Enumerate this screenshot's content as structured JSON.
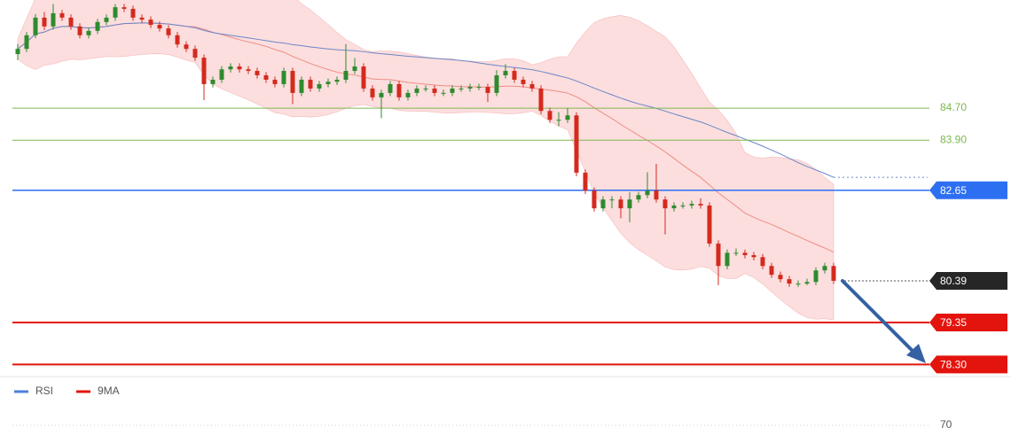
{
  "chart_data": {
    "type": "candlestick",
    "ylim": [
      78.0,
      87.4
    ],
    "up_color": "#2e8b2e",
    "down_color": "#d42a1e",
    "open": [
      86.05,
      86.18,
      86.52,
      86.96,
      86.74,
      87.07,
      86.96,
      86.74,
      86.52,
      86.63,
      86.85,
      86.96,
      87.22,
      87.18,
      86.96,
      86.91,
      86.78,
      86.69,
      86.52,
      86.29,
      86.18,
      85.96,
      85.3,
      85.41,
      85.67,
      85.74,
      85.67,
      85.63,
      85.52,
      85.41,
      85.3,
      85.63,
      85.08,
      85.41,
      85.19,
      85.3,
      85.36,
      85.41,
      85.63,
      85.74,
      85.19,
      84.97,
      85.08,
      85.3,
      84.97,
      85.08,
      85.19,
      85.19,
      85.08,
      85.08,
      85.19,
      85.19,
      85.23,
      85.23,
      85.08,
      85.52,
      85.63,
      85.41,
      85.3,
      85.19,
      84.63,
      84.41,
      84.41,
      84.52,
      83.09,
      82.64,
      82.2,
      82.42,
      82.42,
      82.2,
      82.42,
      82.53,
      82.64,
      82.42,
      82.2,
      82.27,
      82.27,
      82.31,
      82.27,
      81.32,
      80.76,
      81.09,
      81.09,
      81.03,
      80.98,
      80.76,
      80.54,
      80.43,
      80.32,
      80.32,
      80.36,
      80.65,
      80.76
    ],
    "high": [
      86.3,
      86.6,
      87.05,
      87.1,
      87.3,
      87.15,
      87.04,
      86.82,
      86.71,
      86.93,
      87.04,
      87.3,
      87.3,
      87.26,
      87.04,
      86.99,
      86.86,
      86.77,
      86.6,
      86.37,
      86.26,
      86.04,
      85.49,
      85.75,
      85.82,
      85.82,
      85.75,
      85.71,
      85.6,
      85.49,
      85.71,
      85.71,
      85.49,
      85.49,
      85.38,
      85.44,
      85.49,
      86.3,
      85.95,
      85.82,
      85.27,
      85.16,
      85.38,
      85.38,
      85.16,
      85.27,
      85.27,
      85.27,
      85.16,
      85.27,
      85.27,
      85.31,
      85.31,
      85.31,
      85.65,
      85.8,
      85.71,
      85.49,
      85.38,
      85.27,
      84.71,
      84.6,
      84.7,
      84.6,
      83.17,
      82.72,
      82.5,
      82.5,
      82.5,
      82.6,
      82.61,
      83.1,
      83.31,
      82.5,
      82.35,
      82.35,
      82.39,
      82.45,
      82.35,
      81.4,
      81.17,
      81.2,
      81.17,
      81.11,
      81.06,
      80.84,
      80.62,
      80.51,
      80.4,
      80.44,
      80.73,
      80.84,
      80.84
    ],
    "low": [
      85.9,
      86.1,
      86.45,
      86.65,
      86.66,
      86.88,
      86.66,
      86.44,
      86.44,
      86.55,
      86.77,
      86.88,
      87.1,
      86.88,
      86.83,
      86.7,
      86.61,
      86.44,
      86.21,
      86.1,
      85.88,
      84.9,
      85.22,
      85.33,
      85.59,
      85.59,
      85.55,
      85.44,
      85.33,
      85.22,
      85.22,
      84.8,
      85.0,
      85.11,
      85.11,
      85.22,
      85.28,
      85.33,
      85.55,
      85.11,
      84.89,
      84.45,
      85.0,
      84.89,
      84.89,
      85.0,
      85.11,
      85.0,
      85.0,
      85.0,
      85.11,
      85.11,
      85.15,
      84.85,
      85.0,
      85.44,
      85.33,
      85.22,
      85.11,
      84.55,
      84.33,
      84.25,
      84.33,
      83.0,
      82.56,
      82.12,
      82.12,
      82.2,
      81.95,
      81.85,
      82.34,
      82.45,
      82.34,
      81.55,
      82.12,
      82.19,
      82.19,
      82.19,
      81.24,
      80.28,
      80.68,
      81.01,
      80.95,
      80.9,
      80.68,
      80.46,
      80.35,
      80.24,
      80.24,
      80.28,
      80.28,
      80.57,
      80.31
    ],
    "close": [
      86.18,
      86.52,
      86.96,
      86.74,
      87.07,
      86.96,
      86.74,
      86.52,
      86.63,
      86.85,
      86.96,
      87.22,
      87.18,
      86.96,
      86.91,
      86.78,
      86.69,
      86.52,
      86.29,
      86.18,
      85.96,
      85.3,
      85.41,
      85.67,
      85.74,
      85.67,
      85.63,
      85.52,
      85.41,
      85.3,
      85.63,
      85.08,
      85.41,
      85.19,
      85.3,
      85.36,
      85.41,
      85.63,
      85.74,
      85.19,
      84.97,
      85.08,
      85.3,
      84.97,
      85.08,
      85.19,
      85.19,
      85.08,
      85.08,
      85.19,
      85.19,
      85.23,
      85.23,
      85.08,
      85.52,
      85.63,
      85.41,
      85.3,
      85.19,
      84.63,
      84.41,
      84.41,
      84.52,
      83.09,
      82.64,
      82.2,
      82.42,
      82.42,
      82.2,
      82.42,
      82.53,
      82.64,
      82.42,
      82.2,
      82.27,
      82.27,
      82.31,
      82.27,
      81.32,
      80.76,
      81.09,
      81.09,
      81.03,
      80.98,
      80.76,
      80.54,
      80.43,
      80.32,
      80.32,
      80.36,
      80.65,
      80.76,
      80.39
    ],
    "levels": [
      {
        "value": {
          "value": 84.7,
          "label": "84.70"
        },
        "color": "#7cb84f",
        "style": "plain"
      },
      {
        "value": {
          "value": 83.9,
          "label": "83.90"
        },
        "color": "#7cb84f",
        "style": "plain"
      },
      {
        "value": 82.65,
        "color": "#2e6ff2",
        "style": "boxed"
      },
      {
        "value": 80.39,
        "color": "#262626",
        "style": "current"
      },
      {
        "value": 79.35,
        "color": "#e3140e",
        "style": "boxed"
      },
      {
        "value": {
          "value": 78.3,
          "label": "78.30"
        },
        "color": "#e3140e",
        "style": "boxed"
      }
    ],
    "indicator": {
      "legend": [
        {
          "name": "RSI",
          "color": "#4f7fd8"
        },
        {
          "name": "9MA",
          "color": "#e3140e"
        }
      ],
      "ylim": [
        0,
        100
      ],
      "yticks": [
        70
      ]
    }
  }
}
